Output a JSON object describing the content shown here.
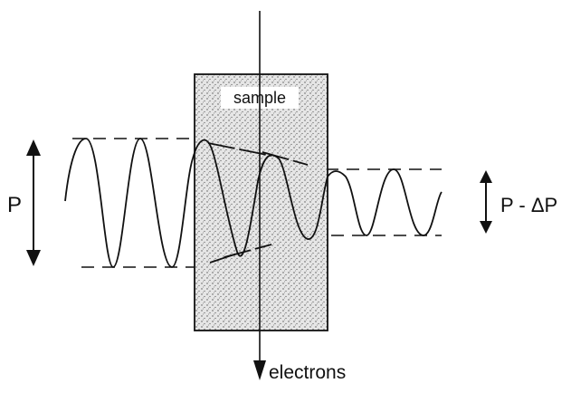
{
  "labels": {
    "sample": "sample",
    "incident_amplitude": "P",
    "transmitted_amplitude": "P - ΔP",
    "beam": "electrons"
  },
  "colors": {
    "ink": "#111111",
    "background": "#ffffff",
    "sample_fill": "#e4e4e4",
    "sample_dots": "#555555"
  }
}
